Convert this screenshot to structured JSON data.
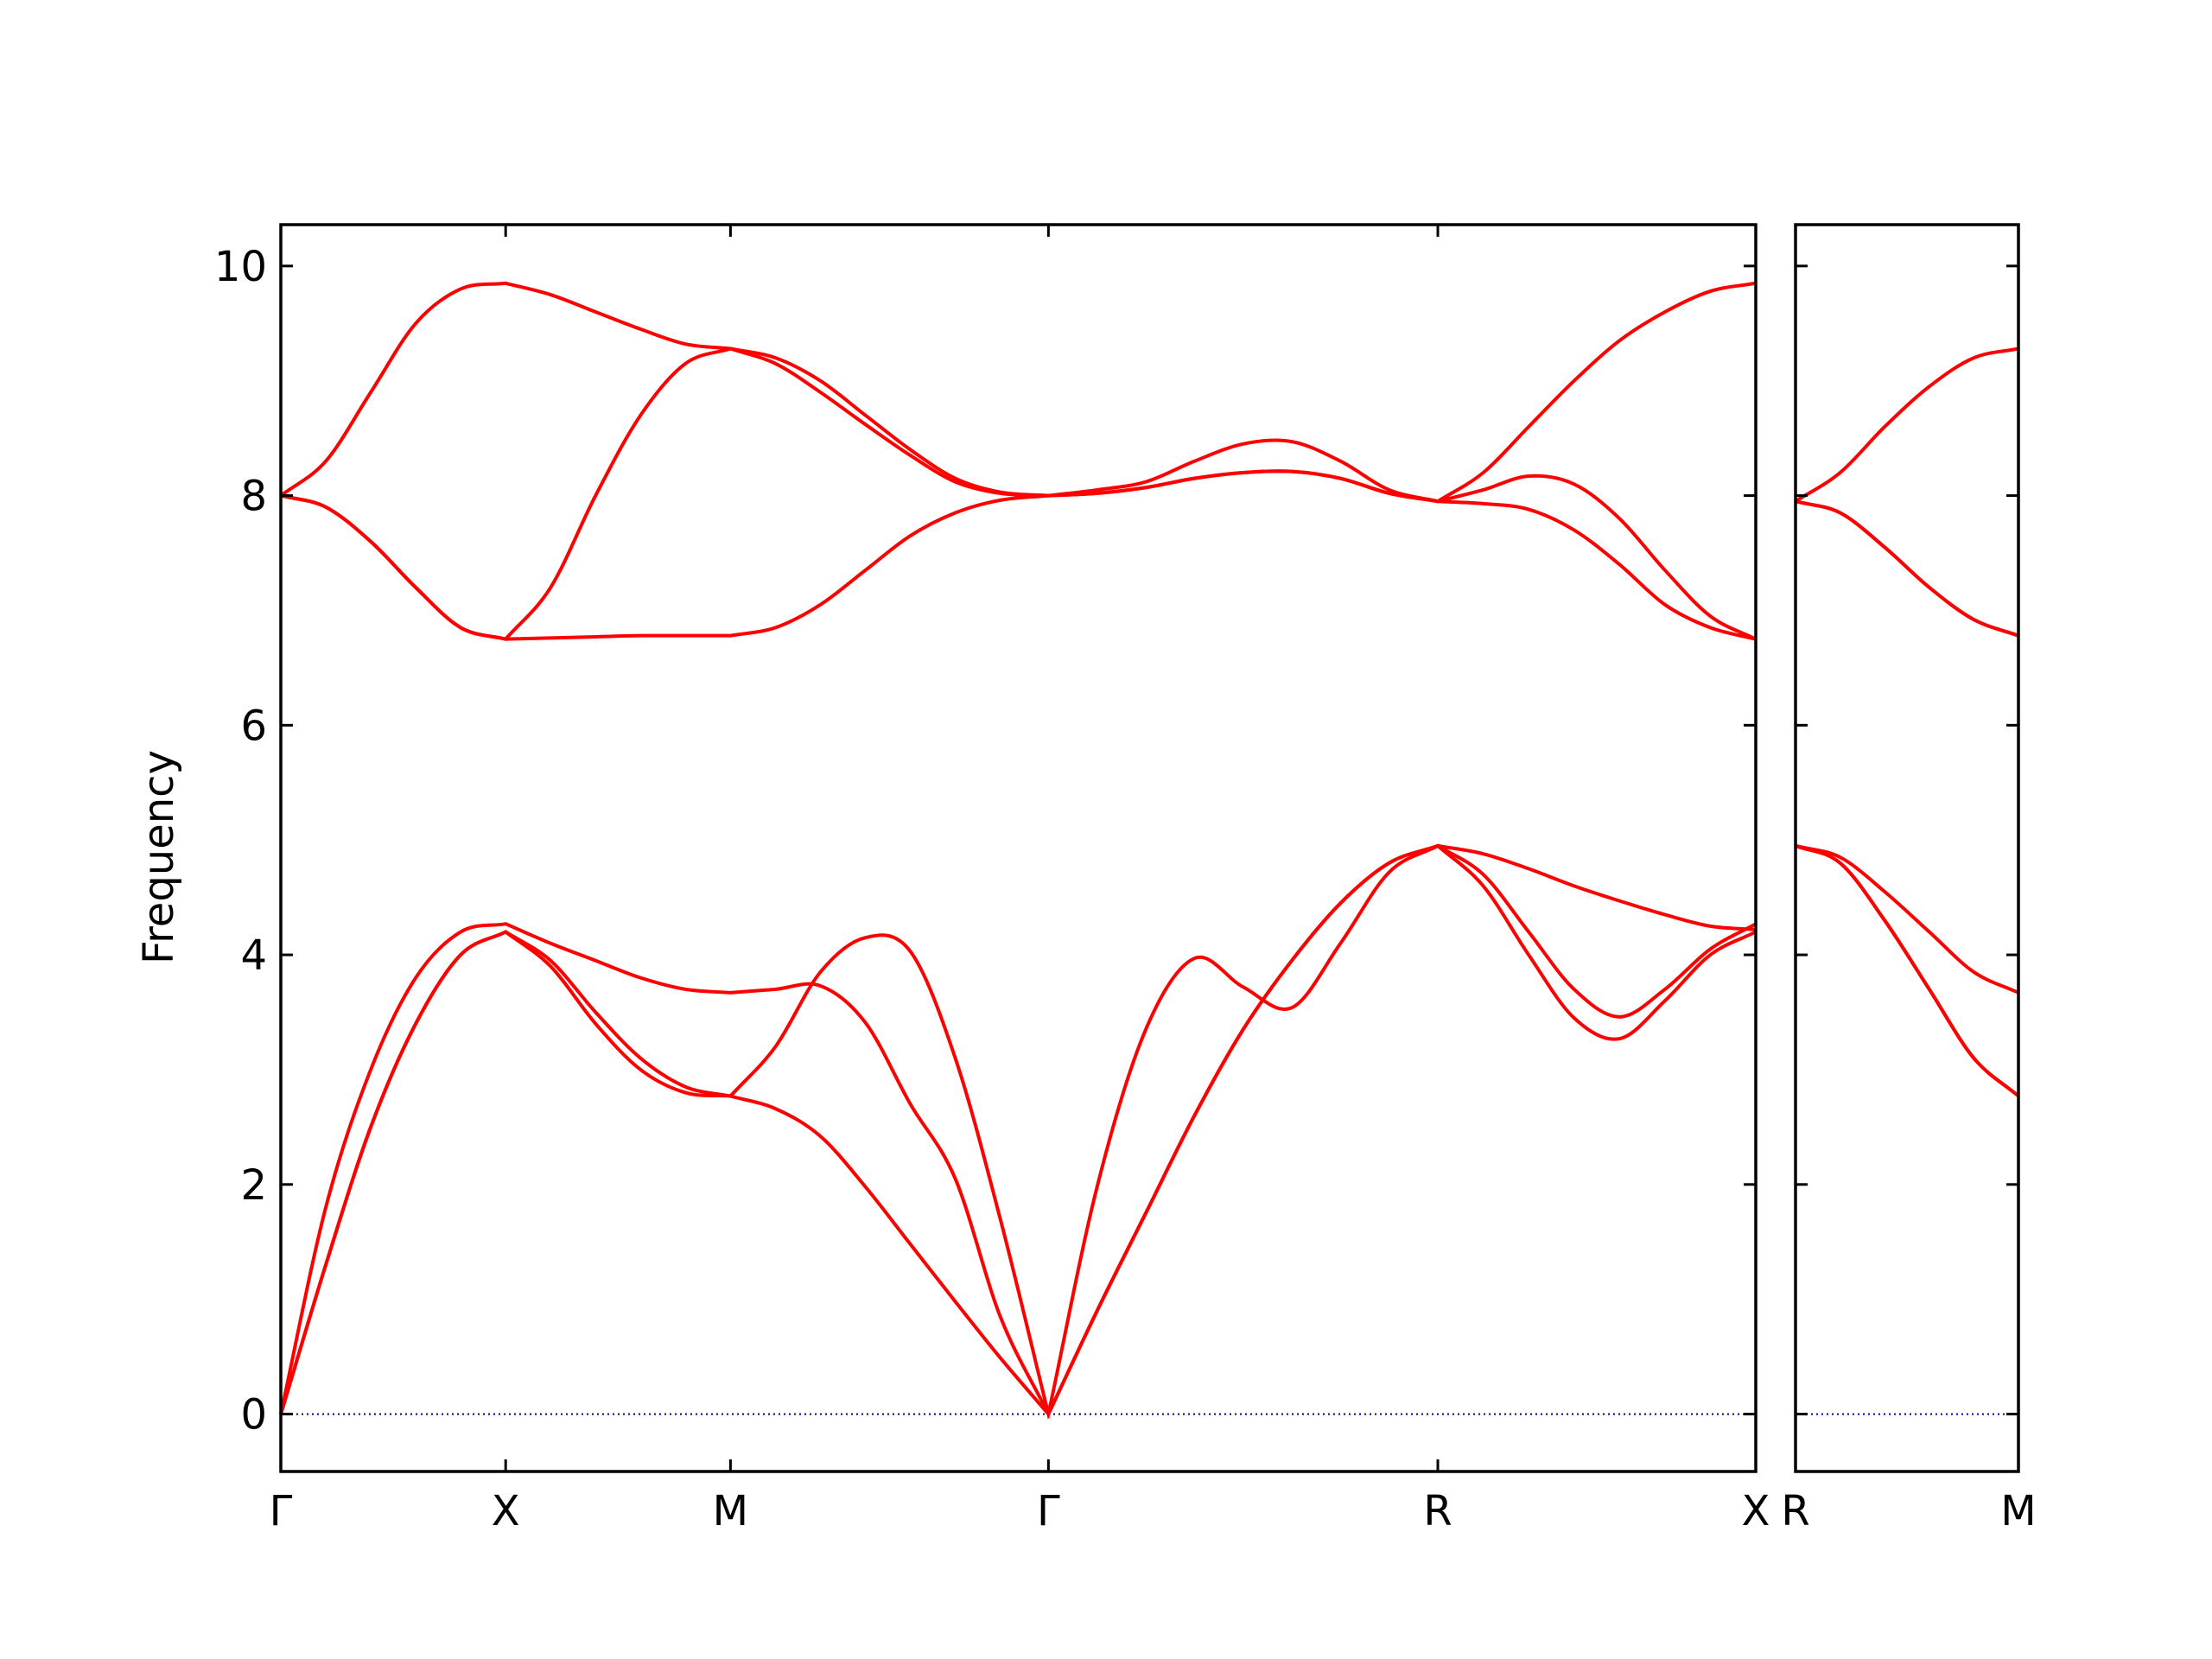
{
  "chart_data": [
    {
      "type": "line",
      "ylabel": "Frequency",
      "x": [
        0,
        0.1,
        0.2,
        0.3,
        0.4,
        0.5,
        0.6,
        0.7,
        0.8,
        0.9,
        1.0,
        1.1,
        1.2,
        1.3,
        1.4,
        1.5,
        1.6,
        1.7071,
        1.8154,
        1.9236,
        2.0319,
        2.1401,
        2.2484,
        2.3566,
        2.4649,
        2.5731,
        2.6741,
        2.7751,
        2.8762,
        2.9772,
        3.0782,
        3.1792,
        3.2802
      ],
      "series": [
        {
          "color": "#ff0000",
          "values": [
            0,
            1.3,
            2.5,
            3.4,
            4.0,
            4.2,
            3.9,
            3.4,
            3.0,
            2.8,
            2.77,
            2.66,
            2.42,
            1.98,
            1.48,
            0.98,
            0.49,
            0,
            0.9,
            1.75,
            2.6,
            3.35,
            3.95,
            4.45,
            4.8,
            4.95,
            4.6,
            4.0,
            3.45,
            3.27,
            3.6,
            4.0,
            4.2
          ]
        },
        {
          "color": "#ff0000",
          "values": [
            0,
            1.3,
            2.5,
            3.4,
            4.0,
            4.2,
            3.95,
            3.5,
            3.1,
            2.85,
            2.77,
            3.2,
            3.85,
            4.15,
            4.03,
            3.1,
            1.7,
            0,
            0.9,
            1.75,
            2.6,
            3.35,
            3.95,
            4.45,
            4.8,
            4.95,
            4.7,
            4.2,
            3.7,
            3.46,
            3.7,
            4.05,
            4.27
          ]
        },
        {
          "color": "#ff0000",
          "values": [
            0,
            1.8,
            3.0,
            3.8,
            4.2,
            4.27,
            4.1,
            3.95,
            3.8,
            3.7,
            3.67,
            3.7,
            3.73,
            3.41,
            2.7,
            2.05,
            0.85,
            0,
            1.98,
            3.35,
            3.97,
            3.72,
            3.54,
            4.1,
            4.72,
            4.95,
            4.88,
            4.75,
            4.6,
            4.47,
            4.35,
            4.25,
            4.22
          ]
        },
        {
          "color": "#ff0000",
          "values": [
            8.0,
            7.9,
            7.6,
            7.2,
            6.85,
            6.75,
            6.76,
            6.77,
            6.78,
            6.78,
            6.78,
            6.85,
            7.05,
            7.35,
            7.65,
            7.85,
            7.96,
            8.0,
            8.02,
            8.07,
            8.15,
            8.2,
            8.21,
            8.15,
            8.02,
            7.95,
            7.93,
            7.88,
            7.7,
            7.4,
            7.05,
            6.85,
            6.75
          ]
        },
        {
          "color": "#ff0000",
          "values": [
            8.0,
            7.9,
            7.6,
            7.2,
            6.85,
            6.75,
            7.2,
            8.0,
            8.7,
            9.15,
            9.28,
            9.15,
            8.9,
            8.62,
            8.35,
            8.12,
            8.02,
            8.0,
            8.02,
            8.07,
            8.15,
            8.2,
            8.21,
            8.15,
            8.02,
            7.95,
            8.05,
            8.17,
            8.1,
            7.8,
            7.35,
            6.95,
            6.75
          ]
        },
        {
          "color": "#ff0000",
          "values": [
            8.0,
            8.3,
            8.9,
            9.5,
            9.8,
            9.85,
            9.75,
            9.6,
            9.45,
            9.32,
            9.28,
            9.2,
            9.0,
            8.7,
            8.4,
            8.15,
            8.03,
            8.0,
            8.05,
            8.12,
            8.3,
            8.45,
            8.47,
            8.3,
            8.05,
            7.95,
            8.2,
            8.6,
            9.0,
            9.35,
            9.6,
            9.78,
            9.85
          ]
        }
      ],
      "xlim": [
        0,
        3.2802
      ],
      "xticks": [
        {
          "value": 0,
          "label": "Γ"
        },
        {
          "value": 0.5,
          "label": "X"
        },
        {
          "value": 1.0,
          "label": "M"
        },
        {
          "value": 1.7071,
          "label": "Γ"
        },
        {
          "value": 2.5731,
          "label": "R"
        },
        {
          "value": 3.2802,
          "label": "X"
        }
      ],
      "ylim": [
        -0.5,
        10.36
      ],
      "yticks": [
        0,
        2,
        4,
        6,
        8,
        10
      ],
      "ytick_labels": true,
      "zero_line": {
        "value": 0,
        "color": "#0000aa"
      }
    },
    {
      "type": "line",
      "x": [
        0,
        0.1,
        0.2,
        0.3,
        0.4,
        0.5
      ],
      "series": [
        {
          "color": "#ff0000",
          "values": [
            4.95,
            4.8,
            4.3,
            3.7,
            3.1,
            2.77
          ]
        },
        {
          "color": "#ff0000",
          "values": [
            4.95,
            4.8,
            4.3,
            3.7,
            3.1,
            2.77
          ]
        },
        {
          "color": "#ff0000",
          "values": [
            4.95,
            4.85,
            4.55,
            4.2,
            3.85,
            3.67
          ]
        },
        {
          "color": "#ff0000",
          "values": [
            7.95,
            7.85,
            7.55,
            7.2,
            6.92,
            6.78
          ]
        },
        {
          "color": "#ff0000",
          "values": [
            7.95,
            7.85,
            7.55,
            7.2,
            6.92,
            6.78
          ]
        },
        {
          "color": "#ff0000",
          "values": [
            7.95,
            8.2,
            8.6,
            8.95,
            9.2,
            9.28
          ]
        }
      ],
      "xlim": [
        0,
        0.5
      ],
      "xticks": [
        {
          "value": 0,
          "label": "R"
        },
        {
          "value": 0.5,
          "label": "M"
        }
      ],
      "ylim": [
        -0.5,
        10.36
      ],
      "yticks": [
        0,
        2,
        4,
        6,
        8,
        10
      ],
      "ytick_labels": false,
      "zero_line": {
        "value": 0,
        "color": "#0000aa"
      }
    }
  ]
}
